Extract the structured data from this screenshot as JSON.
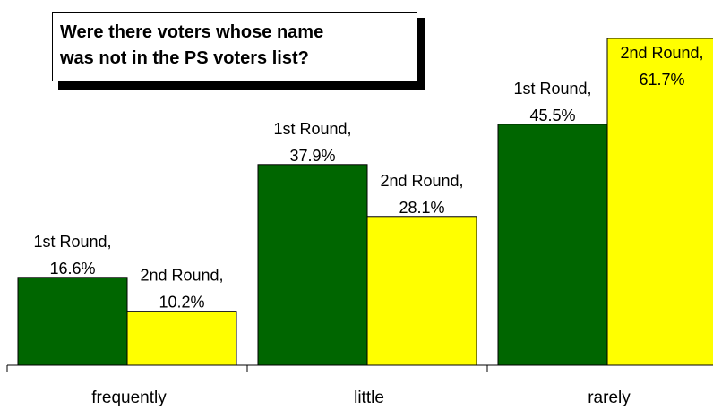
{
  "chart_data": {
    "type": "bar",
    "title_lines": [
      "Were there voters whose name",
      "was not in the PS voters list?"
    ],
    "categories": [
      "frequently",
      "little",
      "rarely"
    ],
    "series": [
      {
        "name": "1st Round",
        "color": "#006600",
        "values": [
          16.6,
          37.9,
          45.5
        ],
        "labels": [
          [
            "1st Round,",
            "16.6%"
          ],
          [
            "1st Round,",
            "37.9%"
          ],
          [
            "1st Round,",
            "45.5%"
          ]
        ]
      },
      {
        "name": "2nd Round",
        "color": "#ffff00",
        "values": [
          10.2,
          28.1,
          61.7
        ],
        "labels": [
          [
            "2nd Round,",
            "10.2%"
          ],
          [
            "2nd Round,",
            "28.1%"
          ],
          [
            "2nd Round,",
            "61.7%"
          ]
        ]
      }
    ],
    "unit": "%",
    "ylim": [
      0,
      61.7
    ],
    "grid": false,
    "legend": "none"
  }
}
